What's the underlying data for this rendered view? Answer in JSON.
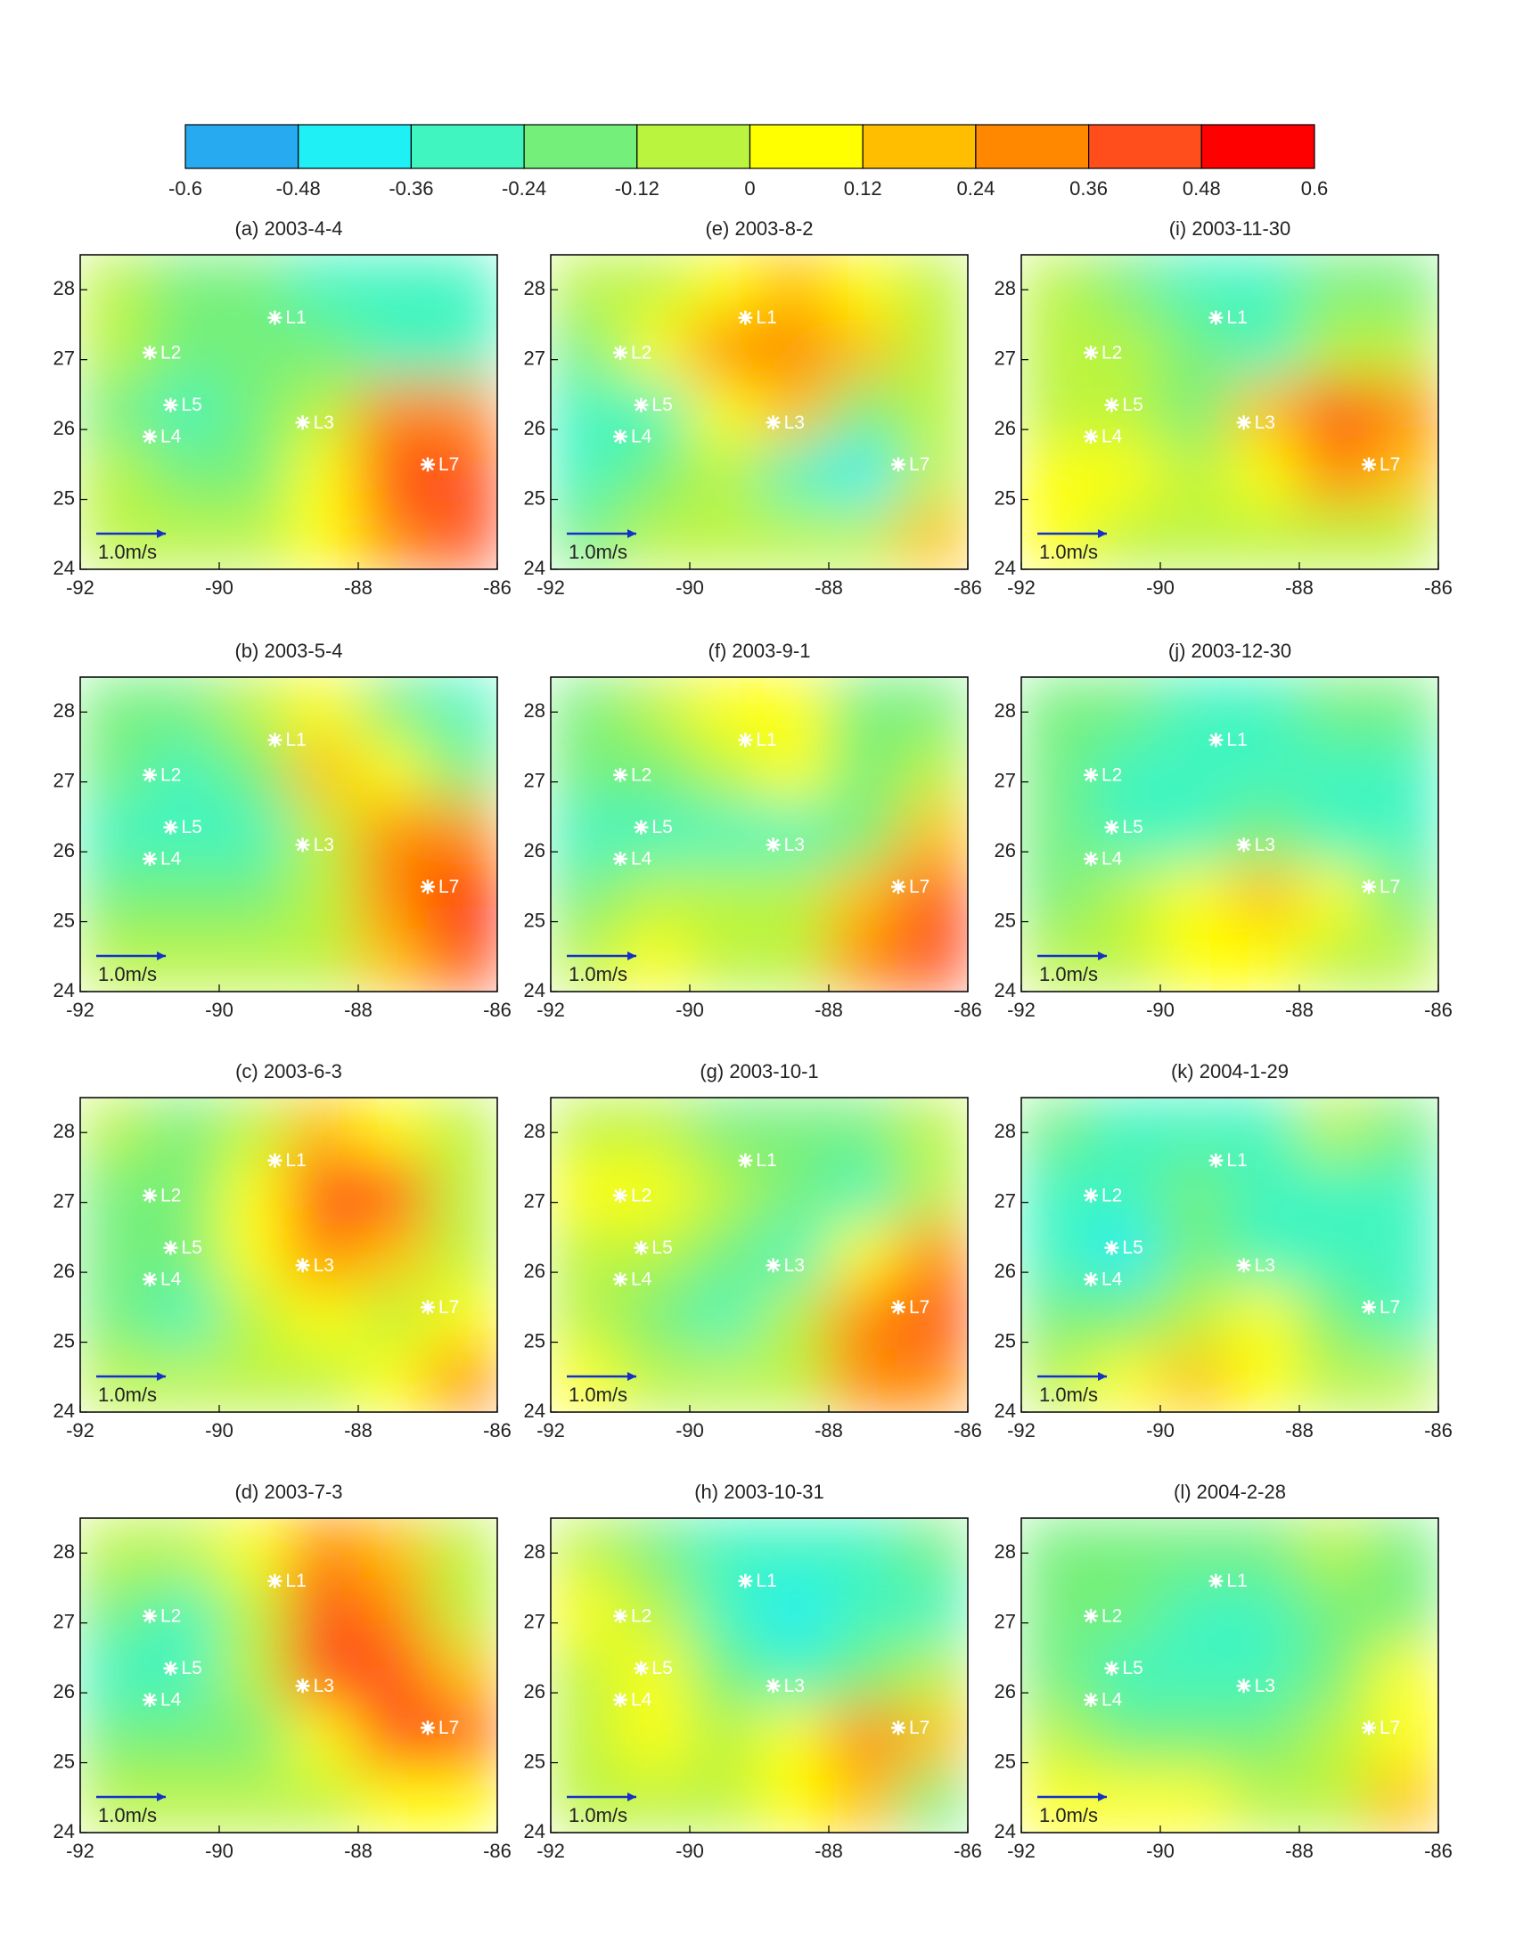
{
  "chart_data": {
    "type": "map-grid",
    "colorbar": {
      "ticks": [
        -0.6,
        -0.48,
        -0.36,
        -0.24,
        -0.12,
        0,
        0.12,
        0.24,
        0.36,
        0.48,
        0.6
      ],
      "colors": [
        "#28aaf0",
        "#1ef0f5",
        "#40f5bf",
        "#74f07a",
        "#bbf43e",
        "#ffff00",
        "#ffbf00",
        "#ff8800",
        "#ff4d1c",
        "#ff0000"
      ]
    },
    "xlim": [
      -92,
      -86
    ],
    "xticks": [
      -92,
      -90,
      -88,
      -86
    ],
    "ylim": [
      24,
      28.5
    ],
    "yticks": [
      24,
      25,
      26,
      27,
      28
    ],
    "lon": [
      -91.5,
      -90.5,
      -89.5,
      -88.5,
      -87.5,
      -86.5
    ],
    "lat": [
      28.05,
      27.15,
      26.25,
      25.35,
      24.45
    ],
    "stations": {
      "names": [
        "L1",
        "L2",
        "L3",
        "L4",
        "L5",
        "L7"
      ],
      "x": [
        -89.2,
        -91,
        -88.8,
        -91,
        -90.7,
        -87
      ],
      "y": [
        27.6,
        27.1,
        26.1,
        25.9,
        26.35,
        25.5
      ]
    },
    "scale_label": "1.0m/s",
    "panels": [
      {
        "title": "(a) 2003-4-4",
        "ssh": [
          [
            -0.1,
            -0.15,
            -0.2,
            -0.25,
            -0.3,
            -0.3
          ],
          [
            -0.1,
            -0.15,
            -0.2,
            -0.15,
            -0.3,
            -0.3
          ],
          [
            -0.2,
            -0.3,
            -0.15,
            -0.1,
            0.3,
            0.3
          ],
          [
            -0.1,
            -0.15,
            -0.15,
            0.1,
            0.4,
            0.45
          ],
          [
            -0.1,
            -0.1,
            -0.1,
            0.05,
            0.35,
            0.4
          ]
        ]
      },
      {
        "title": "(b) 2003-5-4",
        "ssh": [
          [
            -0.15,
            -0.15,
            -0.1,
            0.1,
            -0.2,
            -0.25
          ],
          [
            -0.2,
            -0.25,
            -0.15,
            0.15,
            0.1,
            -0.2
          ],
          [
            -0.3,
            -0.35,
            -0.3,
            -0.05,
            0.25,
            0.3
          ],
          [
            -0.15,
            -0.2,
            -0.15,
            -0.1,
            0.3,
            0.5
          ],
          [
            -0.1,
            -0.1,
            -0.1,
            -0.05,
            0.2,
            0.45
          ]
        ]
      },
      {
        "title": "(c) 2003-6-3",
        "ssh": [
          [
            -0.1,
            -0.15,
            -0.05,
            0.15,
            0.1,
            -0.05
          ],
          [
            -0.15,
            -0.2,
            0,
            0.45,
            0.4,
            -0.05
          ],
          [
            -0.2,
            -0.2,
            0,
            0.35,
            0.2,
            -0.1
          ],
          [
            -0.15,
            -0.25,
            -0.1,
            0,
            -0.05,
            0
          ],
          [
            -0.1,
            -0.1,
            -0.1,
            -0.05,
            0.1,
            0.3
          ]
        ]
      },
      {
        "title": "(d) 2003-7-3",
        "ssh": [
          [
            -0.1,
            -0.1,
            0,
            0.35,
            0.2,
            -0.1
          ],
          [
            -0.2,
            -0.25,
            -0.1,
            0.45,
            0.3,
            -0.05
          ],
          [
            -0.3,
            -0.25,
            -0.1,
            0.4,
            0.45,
            0.2
          ],
          [
            -0.2,
            -0.15,
            -0.15,
            0,
            0.4,
            0.45
          ],
          [
            -0.1,
            -0.1,
            -0.1,
            -0.1,
            0,
            0.1
          ]
        ]
      },
      {
        "title": "(e) 2003-8-2",
        "ssh": [
          [
            -0.1,
            -0.05,
            0.1,
            0.2,
            0,
            -0.1
          ],
          [
            -0.15,
            0,
            0.3,
            0.35,
            0.2,
            -0.05
          ],
          [
            -0.3,
            -0.25,
            0.1,
            0.2,
            -0.2,
            -0.1
          ],
          [
            -0.3,
            -0.2,
            -0.1,
            -0.35,
            -0.4,
            -0.1
          ],
          [
            -0.15,
            -0.1,
            -0.1,
            -0.1,
            -0.1,
            0.15
          ]
        ]
      },
      {
        "title": "(f) 2003-9-1",
        "ssh": [
          [
            -0.15,
            -0.1,
            0.05,
            0.05,
            -0.15,
            -0.2
          ],
          [
            -0.2,
            -0.15,
            -0.05,
            0,
            -0.2,
            -0.1
          ],
          [
            -0.3,
            -0.3,
            -0.25,
            -0.25,
            -0.15,
            0.2
          ],
          [
            -0.15,
            -0.1,
            -0.1,
            -0.1,
            0.2,
            0.45
          ],
          [
            -0.05,
            0.05,
            -0.05,
            -0.1,
            0.25,
            0.45
          ]
        ]
      },
      {
        "title": "(g) 2003-10-1",
        "ssh": [
          [
            -0.05,
            -0.05,
            -0.15,
            -0.15,
            -0.15,
            -0.1
          ],
          [
            0.05,
            0.05,
            -0.1,
            -0.15,
            -0.35,
            -0.1
          ],
          [
            -0.1,
            -0.05,
            -0.2,
            -0.25,
            0.1,
            0.3
          ],
          [
            -0.1,
            -0.15,
            -0.3,
            -0.1,
            0.3,
            0.45
          ],
          [
            0.05,
            -0.05,
            -0.1,
            -0.05,
            0.25,
            0.35
          ]
        ]
      },
      {
        "title": "(h) 2003-10-31",
        "ssh": [
          [
            -0.1,
            -0.15,
            -0.25,
            -0.35,
            -0.3,
            -0.2
          ],
          [
            0,
            -0.1,
            -0.3,
            -0.4,
            -0.35,
            -0.3
          ],
          [
            -0.1,
            0.05,
            -0.15,
            -0.35,
            -0.15,
            -0.1
          ],
          [
            -0.05,
            0.05,
            -0.1,
            0.1,
            0.35,
            0.15
          ],
          [
            -0.1,
            -0.05,
            -0.05,
            0.1,
            0.2,
            -0.2
          ]
        ]
      },
      {
        "title": "(i) 2003-11-30",
        "ssh": [
          [
            -0.1,
            -0.15,
            -0.25,
            -0.3,
            -0.2,
            -0.15
          ],
          [
            -0.1,
            -0.1,
            -0.2,
            -0.25,
            -0.1,
            -0.1
          ],
          [
            -0.05,
            -0.1,
            -0.15,
            0.2,
            0.4,
            0.35
          ],
          [
            0.1,
            0.05,
            -0.1,
            0.1,
            0.3,
            0.2
          ],
          [
            0.05,
            -0.05,
            -0.1,
            -0.1,
            -0.05,
            -0.1
          ]
        ]
      },
      {
        "title": "(j) 2003-12-30",
        "ssh": [
          [
            -0.2,
            -0.2,
            -0.25,
            -0.25,
            -0.2,
            -0.2
          ],
          [
            -0.15,
            -0.25,
            -0.3,
            -0.3,
            -0.25,
            -0.3
          ],
          [
            -0.2,
            -0.25,
            -0.25,
            -0.2,
            -0.3,
            -0.35
          ],
          [
            -0.15,
            -0.1,
            0.05,
            0.15,
            0,
            -0.15
          ],
          [
            -0.1,
            -0.05,
            0,
            0.05,
            -0.05,
            -0.1
          ]
        ]
      },
      {
        "title": "(k) 2004-1-29",
        "ssh": [
          [
            -0.2,
            -0.25,
            -0.3,
            -0.25,
            -0.1,
            -0.2
          ],
          [
            -0.25,
            -0.3,
            -0.2,
            -0.3,
            -0.3,
            -0.3
          ],
          [
            -0.25,
            -0.4,
            -0.2,
            -0.25,
            -0.35,
            -0.35
          ],
          [
            -0.15,
            -0.2,
            -0.1,
            0.05,
            -0.2,
            -0.35
          ],
          [
            -0.1,
            0.05,
            0.15,
            0.1,
            -0.05,
            -0.1
          ]
        ]
      },
      {
        "title": "(l) 2004-2-28",
        "ssh": [
          [
            -0.15,
            -0.15,
            -0.2,
            -0.2,
            -0.1,
            -0.15
          ],
          [
            -0.15,
            -0.2,
            -0.25,
            -0.3,
            -0.2,
            -0.15
          ],
          [
            -0.15,
            -0.3,
            -0.25,
            -0.35,
            -0.15,
            0.05
          ],
          [
            -0.1,
            -0.15,
            -0.2,
            -0.15,
            -0.05,
            0.05
          ],
          [
            0,
            0.05,
            0,
            -0.05,
            -0.1,
            0.2
          ]
        ]
      }
    ]
  }
}
